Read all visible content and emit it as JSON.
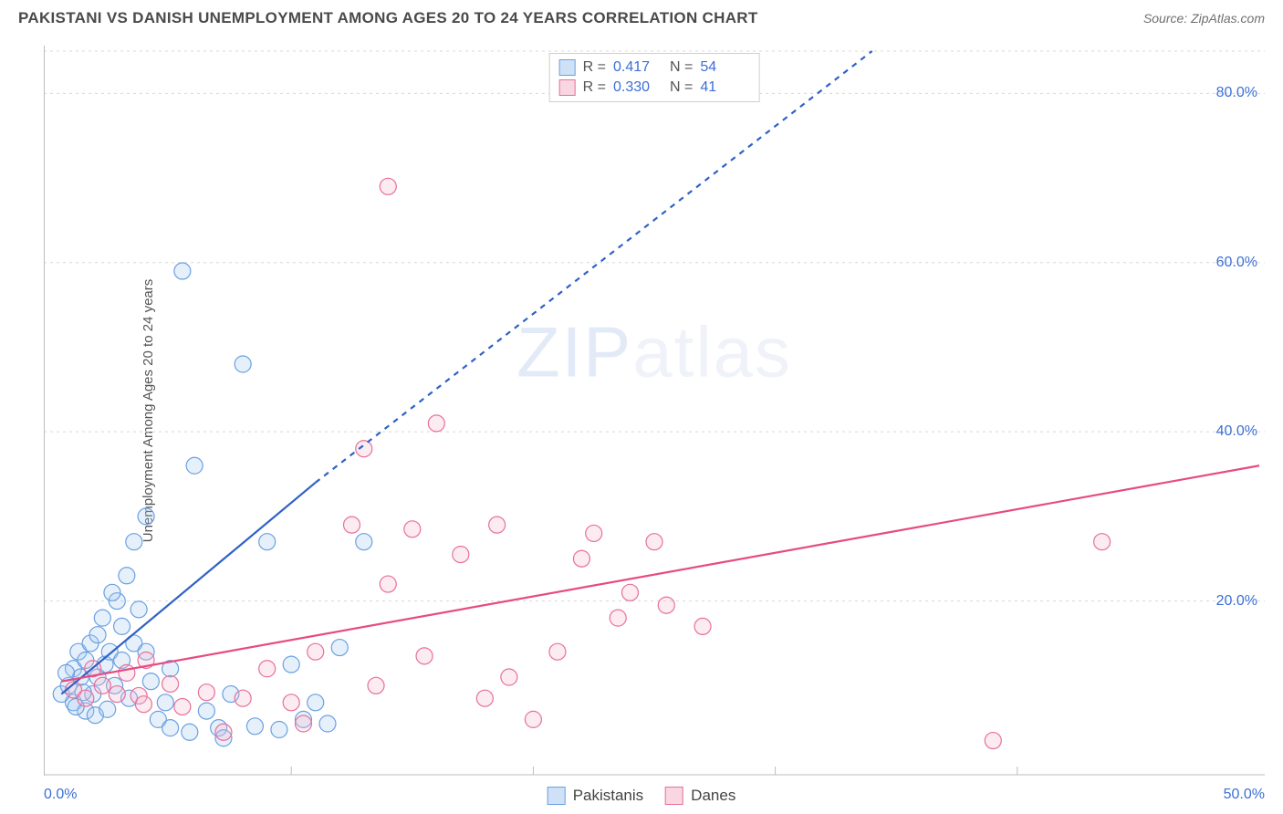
{
  "header": {
    "title": "PAKISTANI VS DANISH UNEMPLOYMENT AMONG AGES 20 TO 24 YEARS CORRELATION CHART",
    "source_prefix": "Source: ",
    "source": "ZipAtlas.com"
  },
  "watermark": {
    "a": "ZIP",
    "b": "atlas"
  },
  "chart": {
    "type": "scatter",
    "y_axis_label": "Unemployment Among Ages 20 to 24 years",
    "xlim": [
      0,
      50
    ],
    "ylim": [
      0,
      85
    ],
    "x_ticks_major_pct": [
      0,
      50
    ],
    "x_ticks_minor_pct": [
      10,
      20,
      30,
      40
    ],
    "y_ticks_pct": [
      20,
      40,
      60,
      80
    ],
    "x_tick_labels": {
      "0": "0.0%",
      "50": "50.0%"
    },
    "y_tick_labels": {
      "20": "20.0%",
      "40": "40.0%",
      "60": "60.0%",
      "80": "80.0%"
    },
    "grid_color": "#d8d8d8",
    "axis_color": "#bdbdbd",
    "background_color": "#ffffff",
    "tick_label_color": "#3b6fd6",
    "marker_radius": 9,
    "marker_stroke_width": 1.2,
    "marker_fill_opacity": 0.28,
    "series": [
      {
        "name": "Pakistanis",
        "color_stroke": "#6aa0e2",
        "color_fill": "#a7c8ef",
        "R": "0.417",
        "N": "54",
        "trend": {
          "solid": {
            "x1": 0.5,
            "y1": 9,
            "x2": 11,
            "y2": 34
          },
          "dashed": {
            "x1": 11,
            "y1": 34,
            "x2": 34,
            "y2": 85
          },
          "color": "#2e61c7",
          "width": 2.2,
          "dash": "6,6"
        },
        "points": [
          [
            0.5,
            9
          ],
          [
            0.8,
            10
          ],
          [
            1.0,
            8
          ],
          [
            1.0,
            12
          ],
          [
            1.2,
            14
          ],
          [
            1.3,
            11
          ],
          [
            1.5,
            7
          ],
          [
            1.5,
            13
          ],
          [
            1.7,
            15
          ],
          [
            1.8,
            9
          ],
          [
            2.0,
            16
          ],
          [
            2.0,
            11
          ],
          [
            2.2,
            18
          ],
          [
            2.3,
            12.5
          ],
          [
            2.5,
            14
          ],
          [
            2.7,
            10
          ],
          [
            2.8,
            20
          ],
          [
            3.0,
            13
          ],
          [
            3.0,
            17
          ],
          [
            3.2,
            23
          ],
          [
            3.5,
            27
          ],
          [
            3.5,
            15
          ],
          [
            3.7,
            19
          ],
          [
            4.0,
            30
          ],
          [
            4.0,
            14
          ],
          [
            4.5,
            6
          ],
          [
            4.8,
            8
          ],
          [
            5.0,
            5
          ],
          [
            5.0,
            12
          ],
          [
            5.5,
            59
          ],
          [
            5.8,
            4.5
          ],
          [
            6.0,
            36
          ],
          [
            6.5,
            7
          ],
          [
            7.0,
            5
          ],
          [
            7.2,
            3.8
          ],
          [
            7.5,
            9
          ],
          [
            8.0,
            48
          ],
          [
            8.5,
            5.2
          ],
          [
            9.0,
            27
          ],
          [
            9.5,
            4.8
          ],
          [
            10,
            12.5
          ],
          [
            10.5,
            6
          ],
          [
            11,
            8
          ],
          [
            11.5,
            5.5
          ],
          [
            12,
            14.5
          ],
          [
            13,
            27
          ],
          [
            3.3,
            8.5
          ],
          [
            1.9,
            6.5
          ],
          [
            2.4,
            7.2
          ],
          [
            0.7,
            11.5
          ],
          [
            1.1,
            7.5
          ],
          [
            4.2,
            10.5
          ],
          [
            1.4,
            9.2
          ],
          [
            2.6,
            21
          ]
        ]
      },
      {
        "name": "Danes",
        "color_stroke": "#e87099",
        "color_fill": "#f3b6cb",
        "R": "0.330",
        "N": "41",
        "trend": {
          "solid": {
            "x1": 0.5,
            "y1": 10.5,
            "x2": 50,
            "y2": 36
          },
          "color": "#e64b82",
          "width": 2.2
        },
        "points": [
          [
            1.0,
            9.5
          ],
          [
            1.5,
            8.5
          ],
          [
            1.8,
            12
          ],
          [
            2.2,
            10
          ],
          [
            2.8,
            9
          ],
          [
            3.2,
            11.5
          ],
          [
            3.7,
            8.8
          ],
          [
            4.0,
            13
          ],
          [
            5.0,
            10.2
          ],
          [
            5.5,
            7.5
          ],
          [
            6.5,
            9.2
          ],
          [
            7.2,
            4.5
          ],
          [
            8.0,
            8.5
          ],
          [
            9.0,
            12
          ],
          [
            10,
            8
          ],
          [
            10.5,
            5.5
          ],
          [
            11,
            14
          ],
          [
            12.5,
            29
          ],
          [
            13,
            38
          ],
          [
            13.5,
            10
          ],
          [
            14,
            69
          ],
          [
            14,
            22
          ],
          [
            15,
            28.5
          ],
          [
            15.5,
            13.5
          ],
          [
            16,
            41
          ],
          [
            17,
            25.5
          ],
          [
            18,
            8.5
          ],
          [
            18.5,
            29
          ],
          [
            19,
            11
          ],
          [
            20,
            6
          ],
          [
            21,
            14
          ],
          [
            22,
            25
          ],
          [
            22.5,
            28
          ],
          [
            23.5,
            18
          ],
          [
            24,
            21
          ],
          [
            25,
            27
          ],
          [
            25.5,
            19.5
          ],
          [
            27,
            17
          ],
          [
            39,
            3.5
          ],
          [
            43.5,
            27
          ],
          [
            3.9,
            7.8
          ]
        ]
      }
    ]
  },
  "stats_box": {
    "rows": [
      {
        "swatch_stroke": "#6aa0e2",
        "swatch_fill": "#cfe1f6",
        "R_label": "R  =",
        "R": "0.417",
        "N_label": "N  =",
        "N": "54"
      },
      {
        "swatch_stroke": "#e87099",
        "swatch_fill": "#f8d6e2",
        "R_label": "R  =",
        "R": "0.330",
        "N_label": "N  =",
        "N": "41"
      }
    ]
  },
  "bottom_legend": [
    {
      "swatch_stroke": "#6aa0e2",
      "swatch_fill": "#cfe1f6",
      "label": "Pakistanis"
    },
    {
      "swatch_stroke": "#e87099",
      "swatch_fill": "#f8d6e2",
      "label": "Danes"
    }
  ]
}
